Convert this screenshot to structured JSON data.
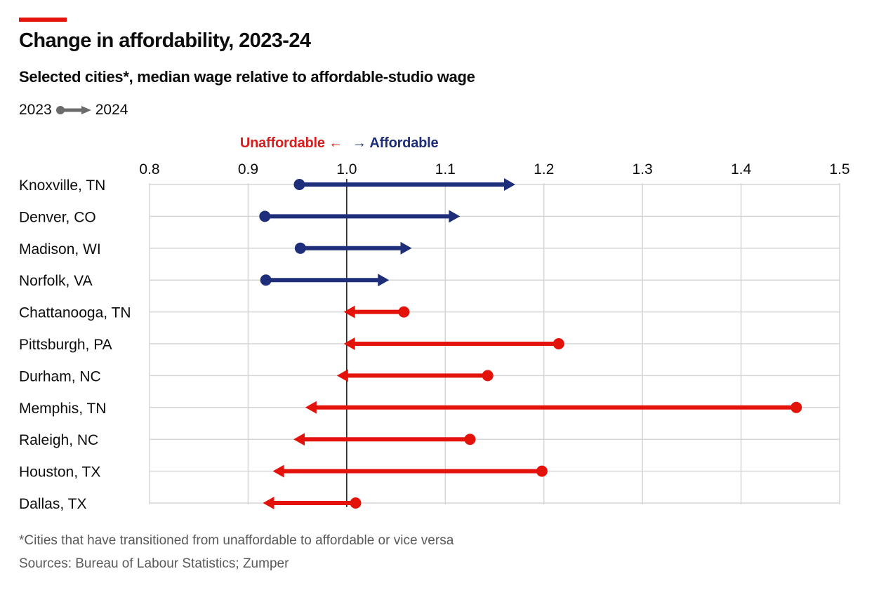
{
  "header": {
    "title": "Change in affordability, 2023-24",
    "subtitle": "Selected cities*, median wage relative to affordable-studio wage",
    "legend_start": "2023",
    "legend_end": "2024"
  },
  "direction_labels": {
    "unaffordable": "Unaffordable ←",
    "affordable": "→ Affordable"
  },
  "footer": {
    "note": "*Cities that have transitioned from unaffordable to affordable or vice versa",
    "source": "Sources: Bureau of Labour Statistics; Zumper"
  },
  "colors": {
    "accent": "#e3120b",
    "affordable": "#1f2e7a",
    "unaffordable": "#e3120b",
    "legend_gray": "#6b6b6b"
  },
  "chart_data": {
    "type": "arrow-dumbbell",
    "title": "Change in affordability, 2023-24",
    "subtitle": "Selected cities*, median wage relative to affordable-studio wage",
    "xlabel": "",
    "ylabel": "",
    "xlim": [
      0.8,
      1.5
    ],
    "x_ticks": [
      "0.8",
      "0.9",
      "1.0",
      "1.1",
      "1.2",
      "1.3",
      "1.4",
      "1.5"
    ],
    "x_tick_values": [
      0.8,
      0.9,
      1.0,
      1.1,
      1.2,
      1.3,
      1.4,
      1.5
    ],
    "reference_line": 1.0,
    "grid": true,
    "legend": {
      "from": "2023",
      "to": "2024",
      "placement": "top-left"
    },
    "categories": [
      "Knoxville, TN",
      "Denver, CO",
      "Madison, WI",
      "Norfolk, VA",
      "Chattanooga, TN",
      "Pittsburgh, PA",
      "Durham, NC",
      "Memphis, TN",
      "Raleigh, NC",
      "Houston, TX",
      "Dallas, TX"
    ],
    "series": [
      {
        "name": "2023",
        "values": [
          0.952,
          0.917,
          0.953,
          0.918,
          1.058,
          1.215,
          1.143,
          1.456,
          1.125,
          1.198,
          1.009
        ]
      },
      {
        "name": "2024",
        "values": [
          1.171,
          1.115,
          1.066,
          1.043,
          0.997,
          0.997,
          0.99,
          0.958,
          0.946,
          0.925,
          0.915
        ]
      }
    ],
    "status_2024": [
      "affordable",
      "affordable",
      "affordable",
      "affordable",
      "unaffordable",
      "unaffordable",
      "unaffordable",
      "unaffordable",
      "unaffordable",
      "unaffordable",
      "unaffordable"
    ]
  }
}
